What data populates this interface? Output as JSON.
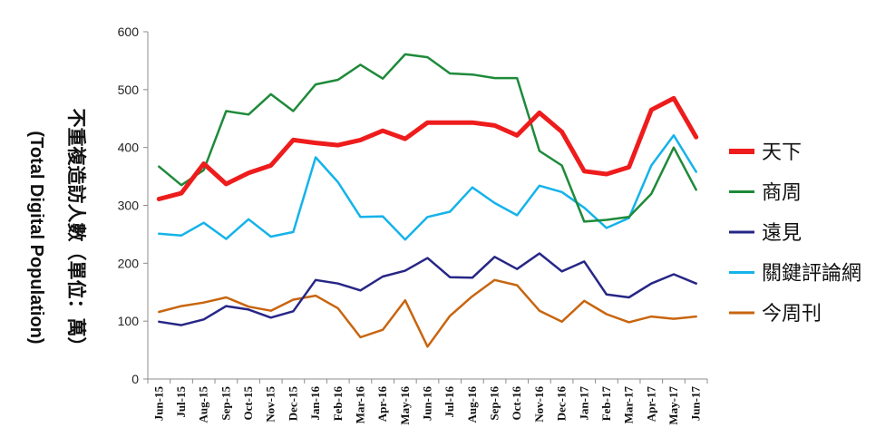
{
  "chart_data": {
    "type": "line",
    "ylabel_zh": "不重複造訪人數（單位：萬）",
    "ylabel_en": "(Total Digital Population)",
    "ylim": [
      0,
      600
    ],
    "yticks": [
      "0",
      "100",
      "200",
      "300",
      "400",
      "500",
      "600"
    ],
    "grid": false,
    "legend_position": "right",
    "categories": [
      "Jun-15",
      "Jul-15",
      "Aug-15",
      "Sep-15",
      "Oct-15",
      "Nov-15",
      "Dec-15",
      "Jan-16",
      "Feb-16",
      "Mar-16",
      "Apr-16",
      "May-16",
      "Jun-16",
      "Jul-16",
      "Aug-16",
      "Sep-16",
      "Oct-16",
      "Nov-16",
      "Dec-16",
      "Jan-17",
      "Feb-17",
      "Mar-17",
      "Apr-17",
      "May-17",
      "Jun-17"
    ],
    "series": [
      {
        "name": "天下",
        "color": "#ee1c1c",
        "width": 5,
        "values": [
          311,
          321,
          372,
          337,
          356,
          369,
          413,
          408,
          404,
          413,
          429,
          415,
          443,
          443,
          443,
          438,
          421,
          460,
          427,
          359,
          354,
          366,
          465,
          485,
          418
        ]
      },
      {
        "name": "商周",
        "color": "#1e8a3a",
        "width": 2.5,
        "values": [
          367,
          335,
          361,
          463,
          457,
          492,
          463,
          509,
          517,
          543,
          519,
          561,
          556,
          528,
          526,
          520,
          520,
          394,
          369,
          272,
          275,
          280,
          320,
          400,
          327
        ]
      },
      {
        "name": "遠見",
        "color": "#262686",
        "width": 2.5,
        "values": [
          99,
          93,
          103,
          126,
          120,
          106,
          117,
          171,
          165,
          153,
          177,
          187,
          209,
          176,
          175,
          211,
          190,
          217,
          186,
          203,
          146,
          141,
          165,
          181,
          165
        ]
      },
      {
        "name": "關鍵評論網",
        "color": "#15b3ea",
        "width": 2.5,
        "values": [
          251,
          248,
          270,
          242,
          276,
          246,
          254,
          383,
          340,
          280,
          281,
          241,
          280,
          289,
          331,
          304,
          283,
          334,
          323,
          296,
          261,
          278,
          369,
          421,
          358
        ]
      },
      {
        "name": "今周刊",
        "color": "#c8650f",
        "width": 2.5,
        "values": [
          116,
          126,
          132,
          141,
          125,
          118,
          137,
          144,
          122,
          72,
          85,
          136,
          56,
          109,
          143,
          171,
          162,
          118,
          99,
          135,
          112,
          98,
          108,
          104,
          108
        ]
      }
    ]
  }
}
